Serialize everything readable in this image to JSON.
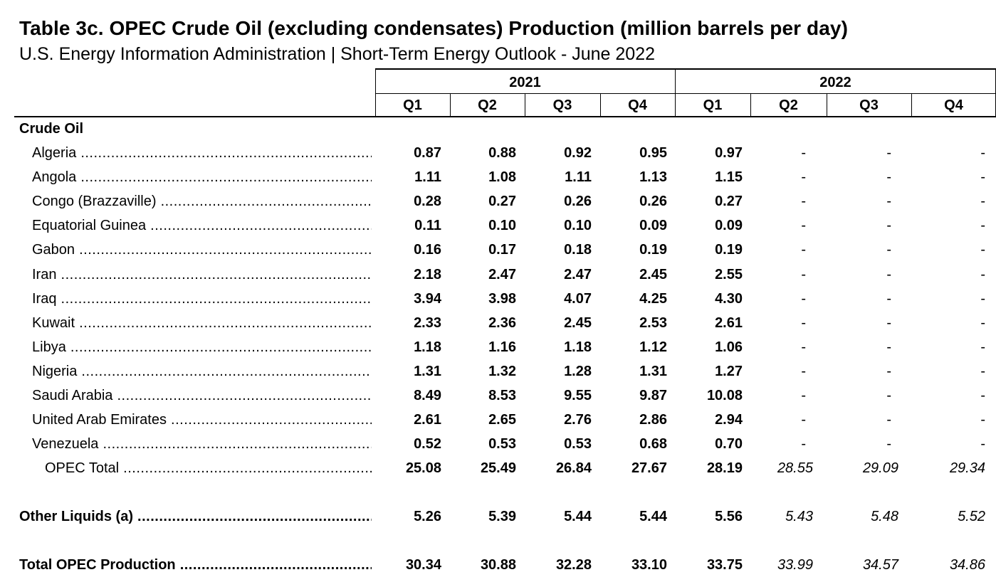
{
  "title": "Table 3c.  OPEC Crude Oil (excluding condensates) Production (million barrels per day)",
  "subtitle": "U.S. Energy Information Administration  |  Short-Term Energy Outlook - June 2022",
  "years": [
    "2021",
    "2022"
  ],
  "quarters": [
    "Q1",
    "Q2",
    "Q3",
    "Q4",
    "Q1",
    "Q2",
    "Q3",
    "Q4"
  ],
  "section_label": "Crude Oil",
  "rows": [
    {
      "label": "Algeria",
      "values": [
        "0.87",
        "0.88",
        "0.92",
        "0.95",
        "0.97",
        "-",
        "-",
        "-"
      ]
    },
    {
      "label": "Angola",
      "values": [
        "1.11",
        "1.08",
        "1.11",
        "1.13",
        "1.15",
        "-",
        "-",
        "-"
      ]
    },
    {
      "label": "Congo (Brazzaville)",
      "values": [
        "0.28",
        "0.27",
        "0.26",
        "0.26",
        "0.27",
        "-",
        "-",
        "-"
      ]
    },
    {
      "label": "Equatorial Guinea",
      "values": [
        "0.11",
        "0.10",
        "0.10",
        "0.09",
        "0.09",
        "-",
        "-",
        "-"
      ]
    },
    {
      "label": "Gabon",
      "values": [
        "0.16",
        "0.17",
        "0.18",
        "0.19",
        "0.19",
        "-",
        "-",
        "-"
      ]
    },
    {
      "label": "Iran",
      "values": [
        "2.18",
        "2.47",
        "2.47",
        "2.45",
        "2.55",
        "-",
        "-",
        "-"
      ]
    },
    {
      "label": "Iraq",
      "values": [
        "3.94",
        "3.98",
        "4.07",
        "4.25",
        "4.30",
        "-",
        "-",
        "-"
      ]
    },
    {
      "label": "Kuwait",
      "values": [
        "2.33",
        "2.36",
        "2.45",
        "2.53",
        "2.61",
        "-",
        "-",
        "-"
      ]
    },
    {
      "label": "Libya",
      "values": [
        "1.18",
        "1.16",
        "1.18",
        "1.12",
        "1.06",
        "-",
        "-",
        "-"
      ]
    },
    {
      "label": "Nigeria",
      "values": [
        "1.31",
        "1.32",
        "1.28",
        "1.31",
        "1.27",
        "-",
        "-",
        "-"
      ]
    },
    {
      "label": "Saudi Arabia",
      "values": [
        "8.49",
        "8.53",
        "9.55",
        "9.87",
        "10.08",
        "-",
        "-",
        "-"
      ]
    },
    {
      "label": "United Arab Emirates",
      "values": [
        "2.61",
        "2.65",
        "2.76",
        "2.86",
        "2.94",
        "-",
        "-",
        "-"
      ]
    },
    {
      "label": "Venezuela",
      "values": [
        "0.52",
        "0.53",
        "0.53",
        "0.68",
        "0.70",
        "-",
        "-",
        "-"
      ]
    },
    {
      "label": "OPEC Total",
      "values": [
        "25.08",
        "25.49",
        "26.84",
        "27.67",
        "28.19",
        "28.55",
        "29.09",
        "29.34"
      ]
    }
  ],
  "other_liquids": {
    "label": "Other Liquids (a)",
    "values": [
      "5.26",
      "5.39",
      "5.44",
      "5.44",
      "5.56",
      "5.43",
      "5.48",
      "5.52"
    ]
  },
  "total_opec": {
    "label": "Total OPEC Production",
    "values": [
      "30.34",
      "30.88",
      "32.28",
      "33.10",
      "33.75",
      "33.99",
      "34.57",
      "34.86"
    ]
  }
}
